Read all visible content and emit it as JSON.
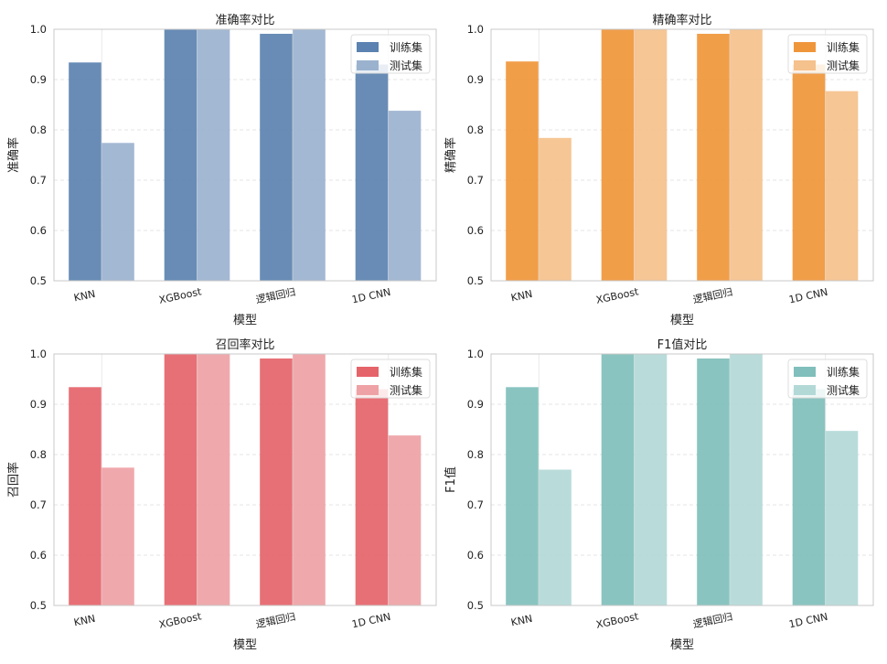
{
  "chart_data": [
    {
      "type": "bar",
      "title": "准确率对比",
      "xlabel": "模型",
      "ylabel": "准确率",
      "ylim": [
        0.5,
        1.0
      ],
      "yticks": [
        "0.5",
        "0.6",
        "0.7",
        "0.8",
        "0.9",
        "1.0"
      ],
      "categories": [
        "KNN",
        "XGBoost",
        "逻辑回归",
        "1D CNN"
      ],
      "series": [
        {
          "name": "训练集",
          "color": "#5b82b0",
          "values": [
            0.934,
            1.0,
            0.991,
            0.93
          ]
        },
        {
          "name": "测试集",
          "color": "#9bb2cf",
          "values": [
            0.774,
            1.0,
            1.0,
            0.838
          ]
        }
      ],
      "legend": "top-right"
    },
    {
      "type": "bar",
      "title": "精确率对比",
      "xlabel": "模型",
      "ylabel": "精确率",
      "ylim": [
        0.5,
        1.0
      ],
      "yticks": [
        "0.5",
        "0.6",
        "0.7",
        "0.8",
        "0.9",
        "1.0"
      ],
      "categories": [
        "KNN",
        "XGBoost",
        "逻辑回归",
        "1D CNN"
      ],
      "series": [
        {
          "name": "训练集",
          "color": "#f0963a",
          "values": [
            0.936,
            1.0,
            0.991,
            0.93
          ]
        },
        {
          "name": "测试集",
          "color": "#f5c18c",
          "values": [
            0.784,
            1.0,
            1.0,
            0.877
          ]
        }
      ],
      "legend": "top-right"
    },
    {
      "type": "bar",
      "title": "召回率对比",
      "xlabel": "模型",
      "ylabel": "召回率",
      "ylim": [
        0.5,
        1.0
      ],
      "yticks": [
        "0.5",
        "0.6",
        "0.7",
        "0.8",
        "0.9",
        "1.0"
      ],
      "categories": [
        "KNN",
        "XGBoost",
        "逻辑回归",
        "1D CNN"
      ],
      "series": [
        {
          "name": "训练集",
          "color": "#e5646a",
          "values": [
            0.934,
            1.0,
            0.991,
            0.93
          ]
        },
        {
          "name": "测试集",
          "color": "#eea2a5",
          "values": [
            0.774,
            1.0,
            1.0,
            0.838
          ]
        }
      ],
      "legend": "top-right"
    },
    {
      "type": "bar",
      "title": "F1值对比",
      "xlabel": "模型",
      "ylabel": "F1值",
      "ylim": [
        0.5,
        1.0
      ],
      "yticks": [
        "0.5",
        "0.6",
        "0.7",
        "0.8",
        "0.9",
        "1.0"
      ],
      "categories": [
        "KNN",
        "XGBoost",
        "逻辑回归",
        "1D CNN"
      ],
      "series": [
        {
          "name": "训练集",
          "color": "#80bfbb",
          "values": [
            0.934,
            1.0,
            0.991,
            0.93
          ]
        },
        {
          "name": "测试集",
          "color": "#b3d9d7",
          "values": [
            0.77,
            1.0,
            1.0,
            0.847
          ]
        }
      ],
      "legend": "top-right"
    }
  ]
}
